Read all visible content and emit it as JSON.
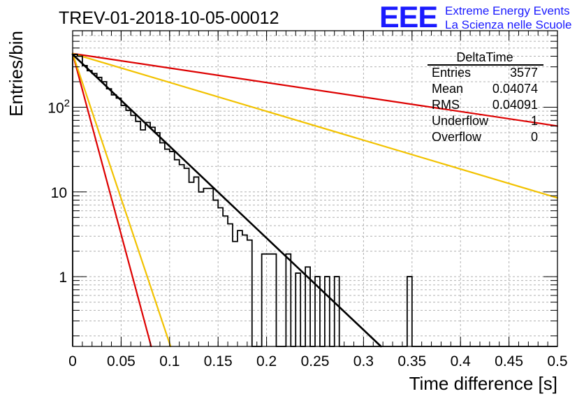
{
  "header": {
    "run_title": "TREV-01-2018-10-05-00012",
    "logo_text": "EEE",
    "project_line1": "Extreme Energy Events",
    "project_line2": "La Scienza nelle Scuole"
  },
  "colors": {
    "histogram": "#000000",
    "fit": "#000000",
    "red_reference": "#dd0000",
    "yellow_reference": "#f2c200",
    "logo_blue": "#1a1aff",
    "grid": "#b0b0b0"
  },
  "stats_box": {
    "title": "DeltaTime",
    "rows": [
      {
        "label": "Entries",
        "value": "3577"
      },
      {
        "label": "Mean",
        "value": "0.04074"
      },
      {
        "label": "RMS",
        "value": "0.04091"
      },
      {
        "label": "Underflow",
        "value": "1"
      },
      {
        "label": "Overflow",
        "value": "0"
      }
    ]
  },
  "chart_data": {
    "type": "histogram",
    "xlabel": "Time difference [s]",
    "ylabel": "Entries/bin",
    "xlim": [
      0,
      0.5
    ],
    "ylim": [
      0.15,
      800
    ],
    "yscale": "log",
    "grid": true,
    "x_ticks": [
      "0",
      "0.05",
      "0.1",
      "0.15",
      "0.2",
      "0.25",
      "0.3",
      "0.35",
      "0.4",
      "0.45",
      "0.5"
    ],
    "y_ticks": [
      "1",
      "10",
      "10^2"
    ],
    "bin_width": 0.005,
    "histogram": {
      "bin_edges_start": 0,
      "values": [
        420,
        400,
        310,
        270,
        250,
        225,
        200,
        165,
        140,
        128,
        105,
        92,
        80,
        68,
        54,
        66,
        58,
        50,
        38,
        32,
        30,
        24,
        21,
        19,
        13,
        15,
        10,
        11,
        11,
        8,
        6.5,
        5.2,
        4.2,
        2.6,
        3.5,
        3.1,
        2.7,
        0.1,
        0.1,
        1.85,
        1.85,
        1.85,
        0.1,
        0.1,
        1.85,
        0.1,
        1.1,
        0.1,
        1.3,
        0.1,
        1.0,
        0.1,
        1.0,
        0.1,
        1.0,
        0.1,
        0.1,
        0.1,
        0.1,
        0.1,
        0.1,
        0.1,
        0.1,
        0.1,
        0.1,
        0.1,
        0.1,
        0.1,
        0.1,
        1.0,
        0.1,
        0.1,
        0.1,
        0.1,
        0.1,
        0.1,
        0.1,
        0.1,
        0.1,
        0.1,
        0.1,
        0.1,
        0.1,
        0.1,
        0.1,
        0.1,
        0.1,
        0.1,
        0.1,
        0.1,
        0.1,
        0.1,
        0.1,
        0.1,
        0.1,
        0.1,
        0.1,
        0.1,
        0.1,
        0.1
      ]
    },
    "series": [
      {
        "points": [
          [
            0,
            420
          ],
          [
            0.318,
            0.15
          ]
        ],
        "shape": "exponential",
        "color": "fit"
      },
      {
        "points": [
          [
            0,
            430
          ],
          [
            0.5,
            60
          ]
        ],
        "shape": "exponential",
        "color": "red_reference"
      },
      {
        "points": [
          [
            0,
            430
          ],
          [
            0.5,
            8.5
          ]
        ],
        "shape": "exponential",
        "color": "yellow_reference"
      },
      {
        "points": [
          [
            0,
            430
          ],
          [
            0.081,
            0.15
          ]
        ],
        "shape": "exponential",
        "color": "red_reference"
      },
      {
        "points": [
          [
            0,
            430
          ],
          [
            0.101,
            0.15
          ]
        ],
        "shape": "exponential",
        "color": "yellow_reference"
      }
    ]
  }
}
